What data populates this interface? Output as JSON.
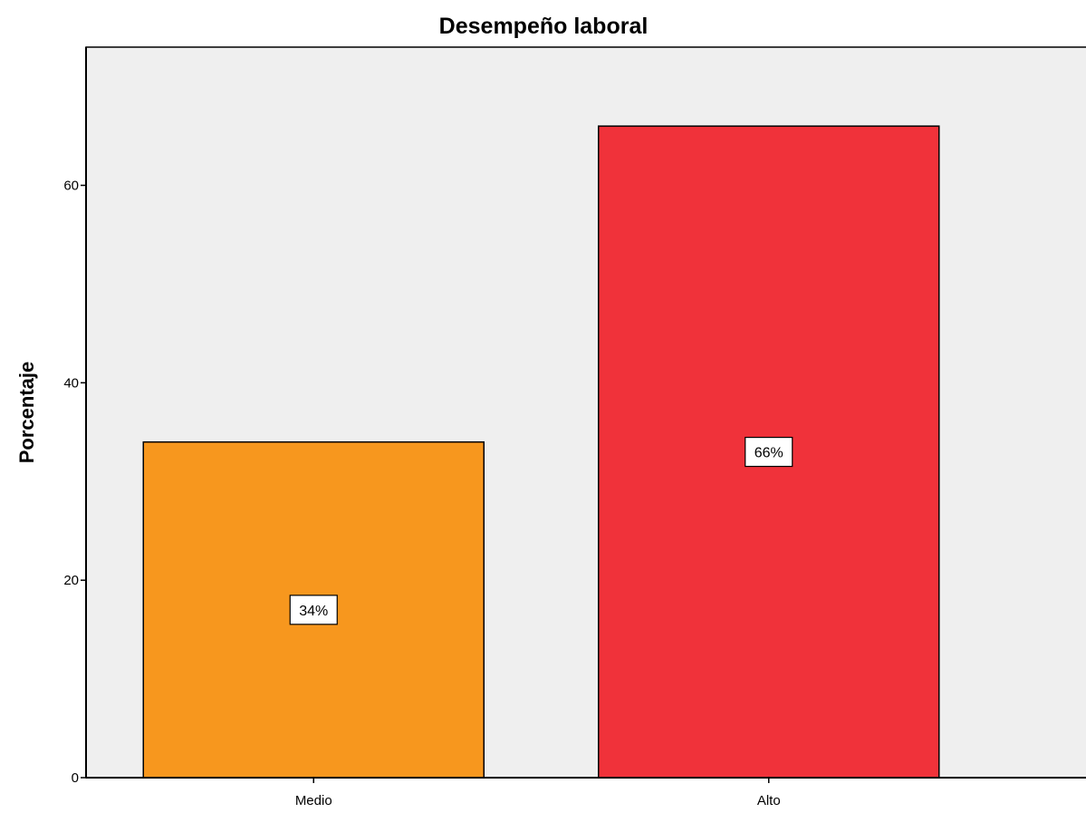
{
  "chart_data": {
    "type": "bar",
    "title": "Desempeño laboral",
    "xlabel": "",
    "ylabel": "Porcentaje",
    "categories": [
      "Medio",
      "Alto"
    ],
    "values": [
      34,
      66
    ],
    "data_labels": [
      "34%",
      "66%"
    ],
    "bar_colors": [
      "#f7971e",
      "#f0323a"
    ],
    "ylim": [
      0,
      74
    ],
    "yticks": [
      0,
      20,
      40,
      60
    ],
    "ytick_labels": [
      "0",
      "20",
      "40",
      "60"
    ],
    "plot_background": "#efefef",
    "grid": false,
    "legend": "none"
  }
}
